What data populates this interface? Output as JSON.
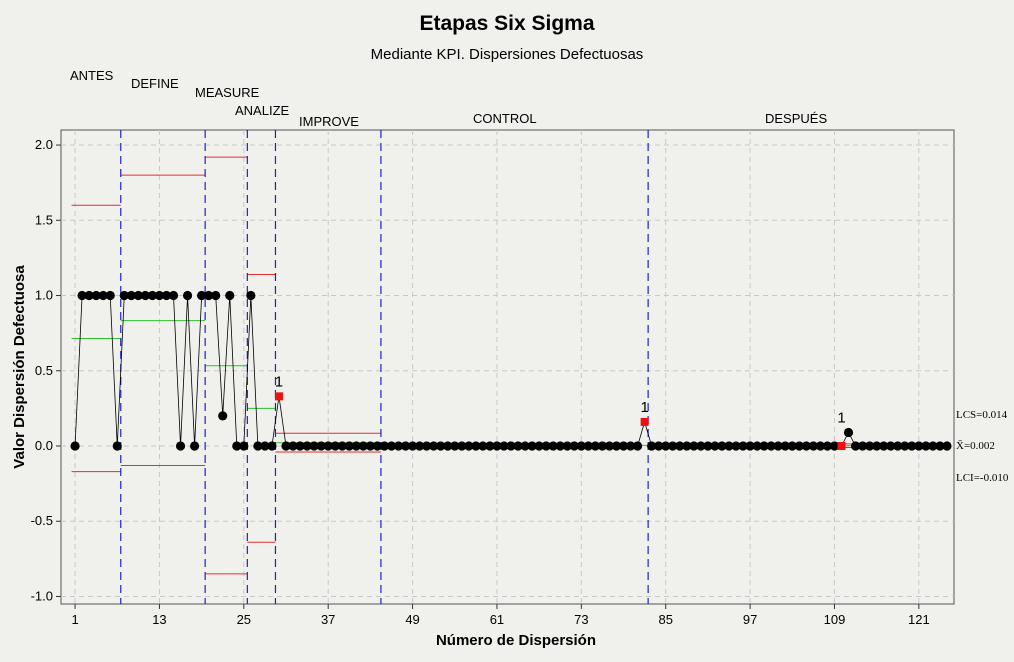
{
  "chart_data": {
    "type": "line",
    "title": "Etapas Six Sigma",
    "subtitle": "Mediante KPI. Dispersiones Defectuosas",
    "xlabel": "Número de Dispersión",
    "ylabel": "Valor Dispersión Defectuosa",
    "xlim": [
      -1,
      126
    ],
    "ylim": [
      -1.05,
      2.1
    ],
    "xticks": [
      1,
      13,
      25,
      37,
      49,
      61,
      73,
      85,
      97,
      109,
      121
    ],
    "yticks": [
      -1.0,
      -0.5,
      0.0,
      0.5,
      1.0,
      1.5,
      2.0
    ],
    "ytick_labels": [
      "-1.0",
      "-0.5",
      "0.0",
      "0.5",
      "1.0",
      "1.5",
      "2.0"
    ],
    "grid": true,
    "stages": [
      {
        "name": "ANTES",
        "start": 1,
        "end": 7,
        "mean": 0.714,
        "ucl": 1.6,
        "lcl": -0.17
      },
      {
        "name": "DEFINE",
        "start": 8,
        "end": 19,
        "mean": 0.833,
        "ucl": 1.8,
        "lcl": -0.13
      },
      {
        "name": "MEASURE",
        "start": 20,
        "end": 25,
        "mean": 0.533,
        "ucl": 1.92,
        "lcl": -0.85
      },
      {
        "name": "ANALIZE",
        "start": 26,
        "end": 29,
        "mean": 0.25,
        "ucl": 1.14,
        "lcl": -0.64
      },
      {
        "name": "IMPROVE",
        "start": 30,
        "end": 44,
        "mean": 0.022,
        "ucl": 0.085,
        "lcl": -0.04
      },
      {
        "name": "CONTROL",
        "start": 45,
        "end": 82,
        "mean": 0.004,
        "ucl": 0.0,
        "lcl": 0.0
      },
      {
        "name": "DESPUÉS",
        "start": 83,
        "end": 124,
        "mean": 0.002,
        "ucl": 0.014,
        "lcl": -0.01
      }
    ],
    "series": [
      {
        "values": [
          0,
          1,
          1,
          1,
          1,
          1,
          0,
          1,
          1,
          1,
          1,
          1,
          1,
          1,
          1,
          0,
          1,
          0,
          1,
          1,
          1,
          0.2,
          1,
          0,
          0,
          1,
          0,
          0,
          0,
          0.33,
          0,
          0,
          0,
          0,
          0,
          0,
          0,
          0,
          0,
          0,
          0,
          0,
          0,
          0,
          0,
          0,
          0,
          0,
          0,
          0,
          0,
          0,
          0,
          0,
          0,
          0,
          0,
          0,
          0,
          0,
          0,
          0,
          0,
          0,
          0,
          0,
          0,
          0,
          0,
          0,
          0,
          0,
          0,
          0,
          0,
          0,
          0,
          0,
          0,
          0,
          0,
          0.16,
          0,
          0,
          0,
          0,
          0,
          0,
          0,
          0,
          0,
          0,
          0,
          0,
          0,
          0,
          0,
          0,
          0,
          0,
          0,
          0,
          0,
          0,
          0,
          0,
          0,
          0,
          0,
          0,
          0.09,
          0,
          0,
          0,
          0,
          0,
          0,
          0,
          0,
          0,
          0,
          0,
          0,
          0,
          0
        ]
      }
    ],
    "out_of_control_points": [
      {
        "x": 30,
        "y": 0.33,
        "label": "1"
      },
      {
        "x": 82,
        "y": 0.16,
        "label": "1"
      },
      {
        "x": 110,
        "y": 0.09,
        "label": "1"
      }
    ],
    "control_labels": {
      "ucl": "LCS=0.014",
      "center": "X̄=0.002",
      "lcl": "LCI=-0.010"
    },
    "colors": {
      "background": "#f0f0ec",
      "grid": "#c8c8c8",
      "ucl_lcl": "#e03030",
      "center": "#30c030",
      "stage_divider": "#2020c8",
      "point": "#000000",
      "flag": "#ee1111"
    }
  }
}
